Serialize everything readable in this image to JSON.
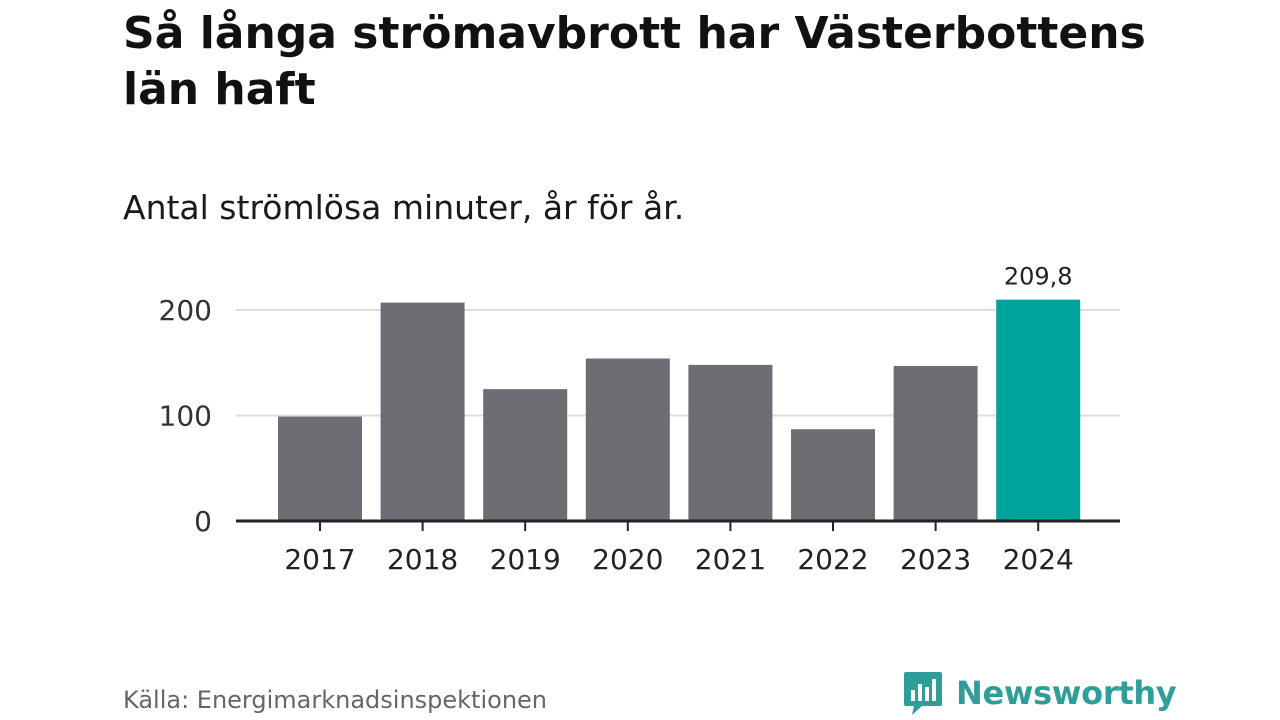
{
  "title": "Så långa strömavbrott har Västerbottens län haft",
  "subtitle": "Antal strömlösa minuter, år för år.",
  "source": "Källa: Energimarknadsinspektionen",
  "logo_text": "Newsworthy",
  "colors": {
    "bar": "#6e6d73",
    "highlight": "#00a39a",
    "grid": "#dddddd",
    "axis": "#222222",
    "brand": "#2f9e99"
  },
  "chart_data": {
    "type": "bar",
    "categories": [
      "2017",
      "2018",
      "2019",
      "2020",
      "2021",
      "2022",
      "2023",
      "2024"
    ],
    "values": [
      99,
      207,
      125,
      154,
      148,
      87,
      147,
      209.8
    ],
    "highlight_index": 7,
    "data_labels": [
      {
        "index": 7,
        "text": "209,8"
      }
    ],
    "y_ticks": [
      0,
      100,
      200
    ],
    "y_tick_labels": [
      "0",
      "100",
      "200"
    ],
    "ylim": [
      0,
      200
    ],
    "grid": true,
    "legend": "none",
    "xlabel": "",
    "ylabel": ""
  }
}
